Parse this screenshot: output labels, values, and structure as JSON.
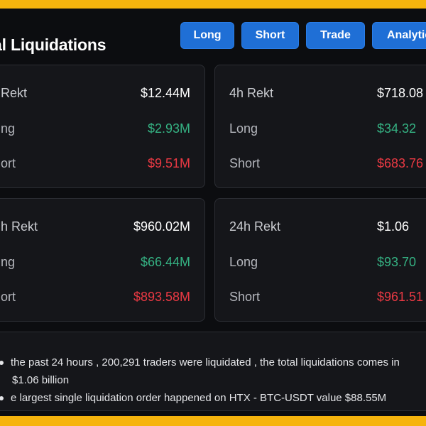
{
  "header": {
    "title": "al Liquidations"
  },
  "nav": {
    "long": "Long",
    "short": "Short",
    "trade": "Trade",
    "analytics": "Analytic"
  },
  "cards": [
    {
      "title": "Rekt",
      "total": "$12.44M",
      "long_label": "ng",
      "long": "$2.93M",
      "short_label": "ort",
      "short": "$9.51M"
    },
    {
      "title": "4h Rekt",
      "total": "$718.08",
      "long_label": "Long",
      "long": "$34.32",
      "short_label": "Short",
      "short": "$683.76"
    },
    {
      "title": "h Rekt",
      "total": "$960.02M",
      "long_label": "ng",
      "long": "$66.44M",
      "short_label": "ort",
      "short": "$893.58M"
    },
    {
      "title": "24h Rekt",
      "total": "$1.06",
      "long_label": "Long",
      "long": "$93.70",
      "short_label": "Short",
      "short": "$961.51"
    }
  ],
  "summary": {
    "line1": "the past 24 hours , 200,291 traders were liquidated , the total liquidations comes in",
    "line2": "$1.06 billion",
    "line3": "e largest single liquidation order happened on HTX - BTC-USDT value $88.55M"
  },
  "colors": {
    "frame_border": "#f6b40d",
    "background": "#0c0d10",
    "card": "#15161a",
    "button": "#1f6fd6",
    "long_green": "#35b283",
    "short_red": "#ea3943"
  }
}
